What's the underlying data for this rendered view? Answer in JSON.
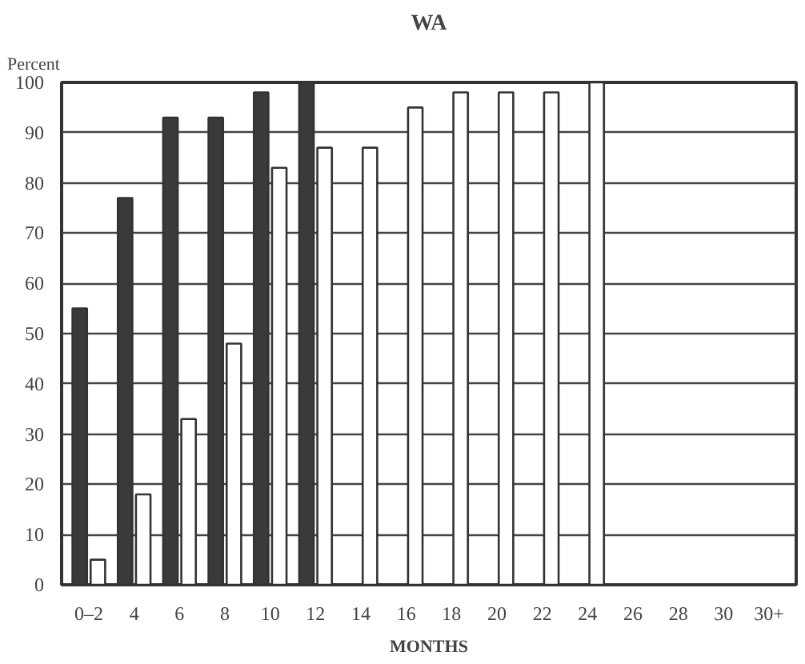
{
  "chart_data": {
    "type": "bar",
    "title": "WA",
    "xlabel": "MONTHS",
    "ylabel": "Percent",
    "categories": [
      "0–2",
      "4",
      "6",
      "8",
      "10",
      "12",
      "14",
      "16",
      "18",
      "20",
      "22",
      "24",
      "26",
      "28",
      "30",
      "30+"
    ],
    "series": [
      {
        "color": "#3a3a3a",
        "values": [
          55,
          77,
          93,
          93,
          98,
          100,
          null,
          null,
          null,
          null,
          null,
          null,
          null,
          null,
          null,
          null
        ]
      },
      {
        "color": "#ffffff",
        "values": [
          5,
          18,
          33,
          48,
          83,
          87,
          87,
          95,
          98,
          98,
          98,
          100,
          null,
          null,
          null,
          null
        ]
      }
    ],
    "ylim": [
      0,
      100
    ],
    "yticks": [
      0,
      10,
      20,
      30,
      40,
      50,
      60,
      70,
      80,
      90,
      100
    ],
    "grid": "y"
  }
}
